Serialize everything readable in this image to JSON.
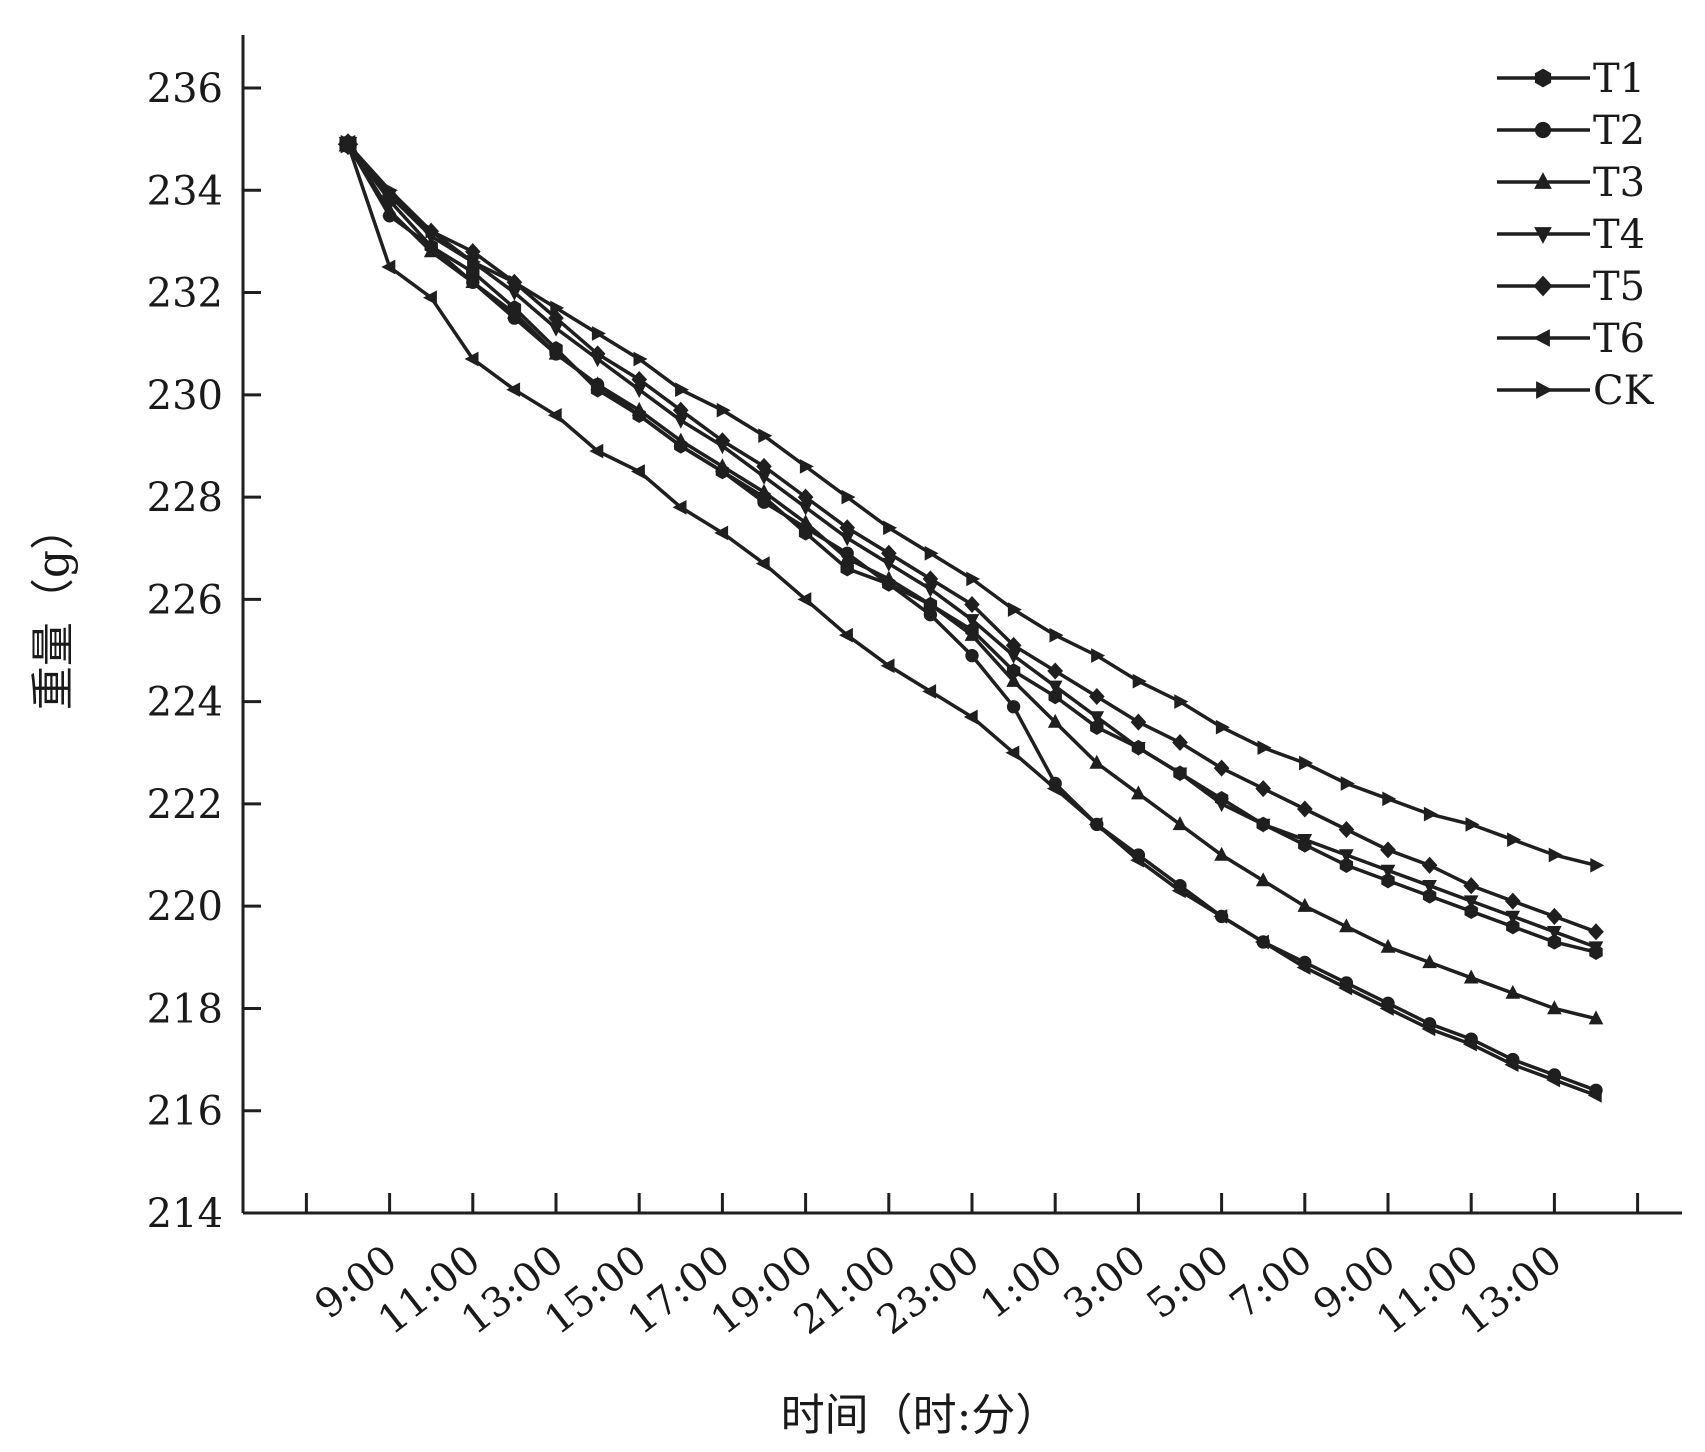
{
  "chart_data": {
    "type": "line",
    "title": "",
    "xlabel": "时间（时:分）",
    "ylabel": "重量（g）",
    "ylim": [
      214,
      236
    ],
    "yticks": [
      214,
      216,
      218,
      220,
      222,
      224,
      226,
      228,
      230,
      232,
      234,
      236
    ],
    "x_tick_labels": [
      "9:00",
      "11:00",
      "13:00",
      "15:00",
      "17:00",
      "19:00",
      "21:00",
      "23:00",
      "1:00",
      "3:00",
      "5:00",
      "7:00",
      "9:00",
      "11:00",
      "13:00"
    ],
    "legend_position": "top-right",
    "grid": false,
    "x": [
      0,
      1,
      2,
      3,
      4,
      5,
      6,
      7,
      8,
      9,
      10,
      11,
      12,
      13,
      14,
      15,
      16,
      17,
      18,
      19,
      20,
      21,
      22,
      23,
      24,
      25,
      26,
      27,
      28,
      29,
      30
    ],
    "series": [
      {
        "name": "T1",
        "marker": "hexagon",
        "values": [
          234.9,
          233.8,
          232.9,
          232.4,
          231.7,
          230.9,
          230.1,
          229.6,
          229.0,
          228.5,
          228.0,
          227.3,
          226.6,
          226.3,
          225.9,
          225.4,
          224.6,
          224.1,
          223.5,
          223.1,
          222.6,
          222.1,
          221.6,
          221.2,
          220.8,
          220.5,
          220.2,
          219.9,
          219.6,
          219.3,
          219.1
        ]
      },
      {
        "name": "T2",
        "marker": "circle",
        "values": [
          234.9,
          233.5,
          232.9,
          232.2,
          231.5,
          230.8,
          230.2,
          229.6,
          229.0,
          228.5,
          227.9,
          227.4,
          226.9,
          226.3,
          225.7,
          224.9,
          223.9,
          222.4,
          221.6,
          221.0,
          220.4,
          219.8,
          219.3,
          218.9,
          218.5,
          218.1,
          217.7,
          217.4,
          217.0,
          216.7,
          216.4
        ]
      },
      {
        "name": "T3",
        "marker": "triangle-up",
        "values": [
          234.9,
          233.6,
          232.8,
          232.2,
          231.6,
          230.8,
          230.2,
          229.7,
          229.1,
          228.6,
          228.1,
          227.5,
          226.8,
          226.4,
          225.9,
          225.3,
          224.4,
          223.6,
          222.8,
          222.2,
          221.6,
          221.0,
          220.5,
          220.0,
          219.6,
          219.2,
          218.9,
          218.6,
          218.3,
          218.0,
          217.8
        ]
      },
      {
        "name": "T4",
        "marker": "triangle-down",
        "values": [
          234.9,
          233.9,
          233.1,
          232.6,
          232.0,
          231.3,
          230.7,
          230.1,
          229.5,
          229.0,
          228.4,
          227.8,
          227.2,
          226.7,
          226.2,
          225.6,
          224.9,
          224.3,
          223.7,
          223.1,
          222.6,
          222.0,
          221.6,
          221.3,
          221.0,
          220.7,
          220.4,
          220.1,
          219.8,
          219.5,
          219.2
        ]
      },
      {
        "name": "T5",
        "marker": "diamond",
        "values": [
          234.9,
          233.9,
          233.2,
          232.8,
          232.2,
          231.5,
          230.8,
          230.3,
          229.7,
          229.1,
          228.6,
          228.0,
          227.4,
          226.9,
          226.4,
          225.9,
          225.1,
          224.6,
          224.1,
          223.6,
          223.2,
          222.7,
          222.3,
          221.9,
          221.5,
          221.1,
          220.8,
          220.4,
          220.1,
          219.8,
          219.5
        ]
      },
      {
        "name": "T6",
        "marker": "triangle-left",
        "values": [
          234.9,
          232.5,
          231.9,
          230.7,
          230.1,
          229.6,
          228.9,
          228.5,
          227.8,
          227.3,
          226.7,
          226.0,
          225.3,
          224.7,
          224.2,
          223.7,
          223.0,
          222.3,
          221.6,
          220.9,
          220.3,
          219.8,
          219.3,
          218.8,
          218.4,
          218.0,
          217.6,
          217.3,
          216.9,
          216.6,
          216.3
        ]
      },
      {
        "name": "CK",
        "marker": "triangle-right",
        "values": [
          234.9,
          234.0,
          233.2,
          232.6,
          232.2,
          231.7,
          231.2,
          230.7,
          230.1,
          229.7,
          229.2,
          228.6,
          228.0,
          227.4,
          226.9,
          226.4,
          225.8,
          225.3,
          224.9,
          224.4,
          224.0,
          223.5,
          223.1,
          222.8,
          222.4,
          222.1,
          221.8,
          221.6,
          221.3,
          221.0,
          220.8
        ]
      }
    ]
  }
}
